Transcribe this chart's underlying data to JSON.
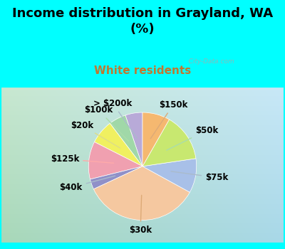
{
  "title": "Income distribution in Grayland, WA\n(%)",
  "subtitle": "White residents",
  "title_color": "#000000",
  "subtitle_color": "#c07830",
  "background_top": "#00ffff",
  "background_chart_left": "#c8e8d0",
  "background_chart_right": "#c8e8f8",
  "labels": [
    "> $200k",
    "$100k",
    "$20k",
    "$125k",
    "$40k",
    "$30k",
    "$75k",
    "$50k",
    "$150k"
  ],
  "values": [
    5,
    5,
    7,
    11,
    3,
    34,
    10,
    14,
    8
  ],
  "colors": [
    "#b8aad8",
    "#a0d8a8",
    "#f0f060",
    "#f0a0b0",
    "#9090c8",
    "#f5c8a0",
    "#a8c0e8",
    "#c8e870",
    "#f5b870"
  ],
  "startangle": 90,
  "label_fontsize": 8.5,
  "watermark": "   City-Data.com"
}
